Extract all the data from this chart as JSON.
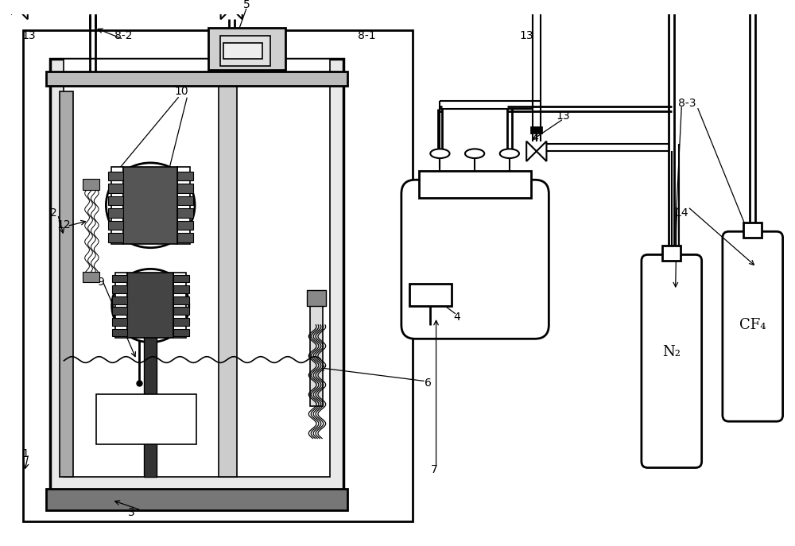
{
  "bg_color": "#ffffff",
  "lw_main": 2.0,
  "lw_thick": 2.5,
  "lw_thin": 1.2,
  "lw_pipe": 2.0
}
